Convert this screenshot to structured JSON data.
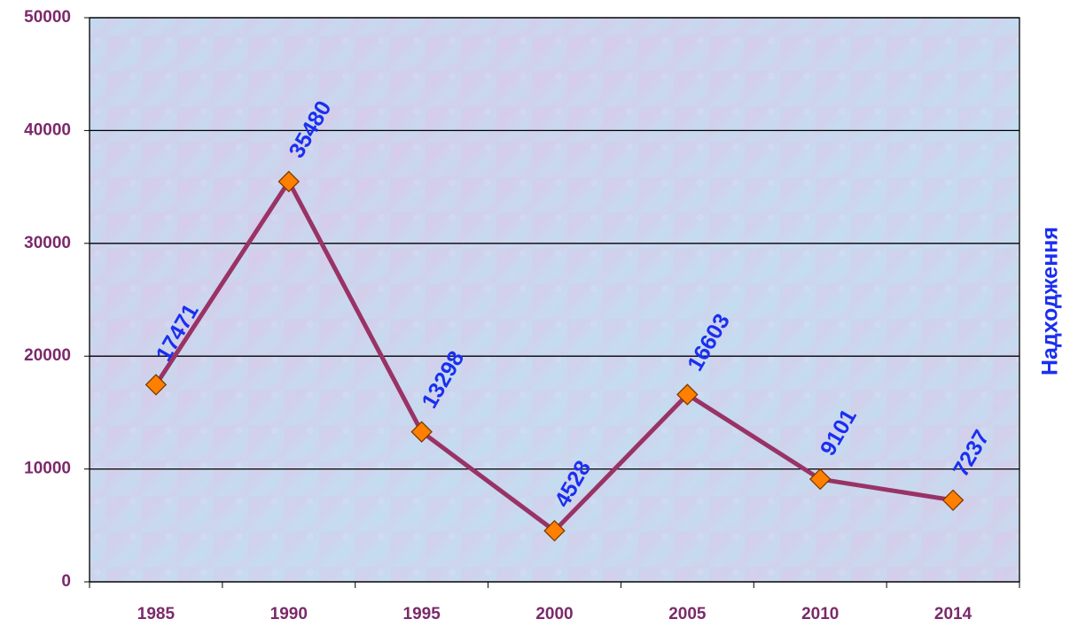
{
  "chart_data": {
    "type": "line",
    "categories": [
      "1985",
      "1990",
      "1995",
      "2000",
      "2005",
      "2010",
      "2014"
    ],
    "series": [
      {
        "name": "Надходження",
        "color": "#993366",
        "marker_color": "#ff8000",
        "values": [
          17471,
          35480,
          13298,
          4528,
          16603,
          9101,
          7237
        ]
      }
    ],
    "ylim": [
      0,
      50000
    ],
    "yticks": [
      0,
      10000,
      20000,
      30000,
      40000,
      50000
    ],
    "grid": true,
    "legend": "right"
  }
}
